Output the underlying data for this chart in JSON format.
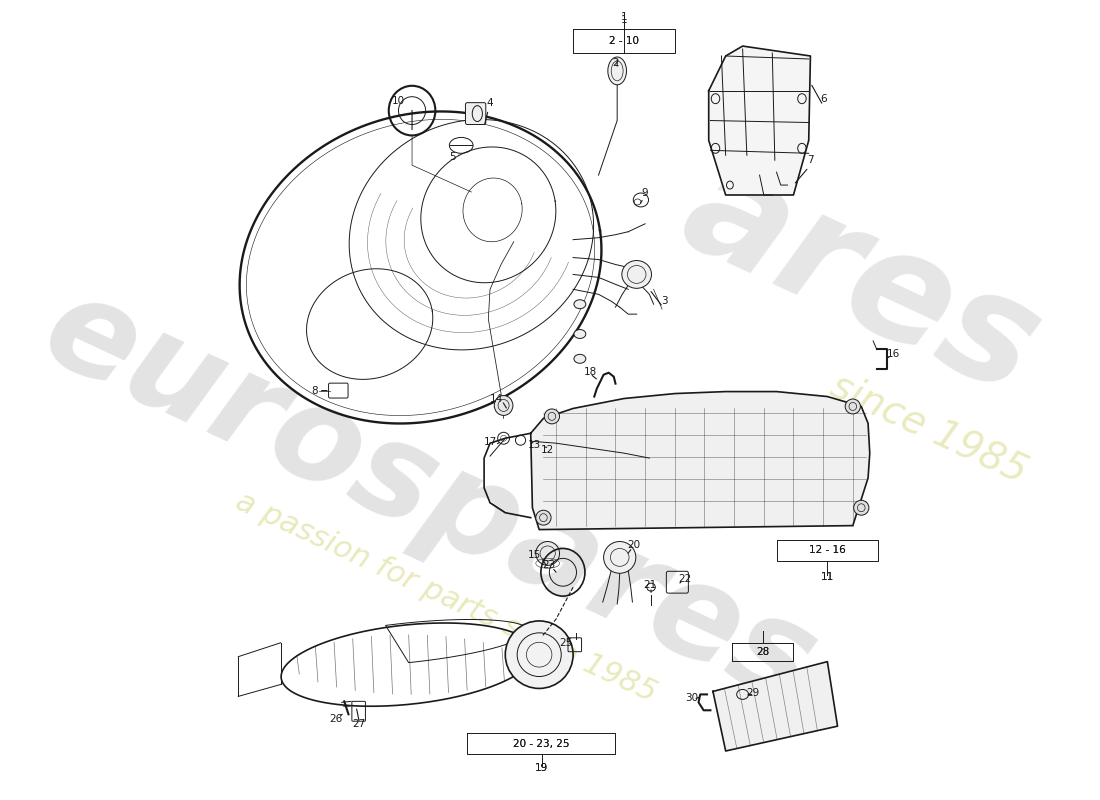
{
  "bg_color": "#ffffff",
  "line_color": "#1a1a1a",
  "watermark1": "eurospares",
  "watermark2": "a passion for parts since 1985",
  "wm1_color": "#c8c8c8",
  "wm2_color": "#e0e0a0",
  "label_fs": 7.5
}
